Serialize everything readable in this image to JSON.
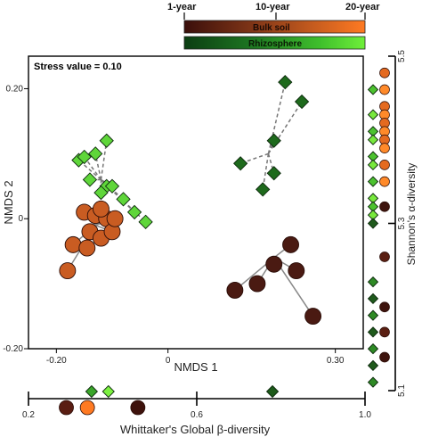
{
  "chart_data": {
    "type": "scatter",
    "title": "",
    "stress_label": "Stress value = 0.10",
    "legend": {
      "time_labels": [
        "1-year",
        "10-year",
        "20-year"
      ],
      "bulk_soil_label": "Bulk soil",
      "rhizosphere_label": "Rhizosphere",
      "bulk_soil_colors": [
        "#3b0f0b",
        "#7a3216",
        "#c35a1e",
        "#ff7a22"
      ],
      "rhizosphere_colors": [
        "#0b3d12",
        "#1f7a22",
        "#3fbf2c",
        "#6fef3a"
      ]
    },
    "nmds": {
      "xlabel": "NMDS 1",
      "ylabel": "NMDS 2",
      "xlim": [
        -0.25,
        0.35
      ],
      "ylim": [
        -0.2,
        0.25
      ],
      "xticks": [
        {
          "value": -0.2,
          "label": "-0.20"
        },
        {
          "value": 0.0,
          "label": "0"
        },
        {
          "value": 0.3,
          "label": "0.30"
        }
      ],
      "yticks": [
        {
          "value": 0.2,
          "label": "0.20"
        },
        {
          "value": 0.0,
          "label": "0"
        },
        {
          "value": -0.2,
          "label": "-0.20"
        }
      ],
      "series": [
        {
          "group": "rhizosphere-young",
          "color": "#5fd63a",
          "centroid": [
            -0.12,
            0.06
          ],
          "points": [
            [
              -0.16,
              0.09
            ],
            [
              -0.13,
              0.1
            ],
            [
              -0.11,
              0.12
            ],
            [
              -0.14,
              0.06
            ],
            [
              -0.11,
              0.05
            ],
            [
              -0.12,
              0.04
            ],
            [
              -0.08,
              0.03
            ],
            [
              -0.1,
              0.05
            ],
            [
              -0.06,
              0.01
            ],
            [
              -0.04,
              -0.005
            ],
            [
              -0.15,
              0.095
            ]
          ]
        },
        {
          "group": "rhizosphere-old",
          "color": "#1e6a1c",
          "centroid": [
            0.18,
            0.1
          ],
          "points": [
            [
              0.21,
              0.21
            ],
            [
              0.24,
              0.18
            ],
            [
              0.19,
              0.12
            ],
            [
              0.13,
              0.085
            ],
            [
              0.19,
              0.07
            ],
            [
              0.17,
              0.045
            ]
          ]
        },
        {
          "group": "bulk-soil-young",
          "color": "#c95c22",
          "centroid": [
            -0.13,
            -0.01
          ],
          "points": [
            [
              -0.15,
              0.01
            ],
            [
              -0.13,
              0.005
            ],
            [
              -0.11,
              0.0
            ],
            [
              -0.14,
              -0.02
            ],
            [
              -0.12,
              -0.03
            ],
            [
              -0.1,
              -0.02
            ],
            [
              -0.12,
              0.015
            ],
            [
              -0.17,
              -0.04
            ],
            [
              -0.18,
              -0.08
            ],
            [
              -0.145,
              -0.045
            ],
            [
              -0.095,
              0.0
            ]
          ]
        },
        {
          "group": "bulk-soil-old",
          "color": "#4a1a12",
          "centroid": [
            0.19,
            -0.06
          ],
          "points": [
            [
              0.22,
              -0.04
            ],
            [
              0.23,
              -0.08
            ],
            [
              0.16,
              -0.1
            ],
            [
              0.12,
              -0.11
            ],
            [
              0.19,
              -0.07
            ],
            [
              0.26,
              -0.15
            ]
          ]
        }
      ]
    },
    "alpha": {
      "label": "Shannon's α-diversity",
      "ticks": [
        {
          "value": 5.5,
          "label": "5.5"
        },
        {
          "value": 5.3,
          "label": "5.3"
        },
        {
          "value": 5.1,
          "label": "5.1"
        }
      ],
      "range": [
        5.1,
        5.5
      ],
      "rhizosphere_values": [
        5.46,
        5.43,
        5.41,
        5.4,
        5.38,
        5.37,
        5.35,
        5.33,
        5.32,
        5.31,
        5.3,
        5.23,
        5.21,
        5.19,
        5.17,
        5.15,
        5.13,
        5.11
      ],
      "bulk_soil_values": [
        5.48,
        5.46,
        5.44,
        5.43,
        5.42,
        5.41,
        5.4,
        5.39,
        5.37,
        5.35,
        5.32,
        5.26,
        5.2,
        5.17,
        5.14
      ]
    },
    "beta": {
      "label": "Whittaker's Global β-diversity",
      "ticks": [
        {
          "value": 0.2,
          "label": "0.2"
        },
        {
          "value": 0.6,
          "label": "0.6"
        },
        {
          "value": 1.0,
          "label": "1.0"
        }
      ],
      "range": [
        0.2,
        1.0
      ],
      "rhizosphere_values": [
        0.35,
        0.39,
        0.78
      ],
      "bulk_soil_values": [
        0.29,
        0.34,
        0.46
      ]
    }
  }
}
